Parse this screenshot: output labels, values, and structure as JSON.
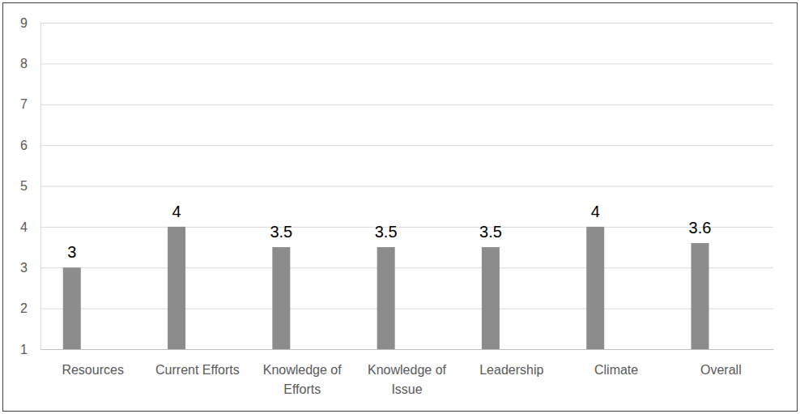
{
  "chart_data": {
    "type": "bar",
    "categories": [
      "Resources",
      "Current Efforts",
      "Knowledge of Efforts",
      "Knowledge of Issue",
      "Leadership",
      "Climate",
      "Overall"
    ],
    "values": [
      3,
      4,
      3.5,
      3.5,
      3.5,
      4,
      3.6
    ],
    "color": "#8c8c8c",
    "ylim": [
      1,
      9
    ],
    "yticks": [
      1,
      2,
      3,
      4,
      5,
      6,
      7,
      8,
      9
    ],
    "grid": true,
    "data_labels": true
  }
}
